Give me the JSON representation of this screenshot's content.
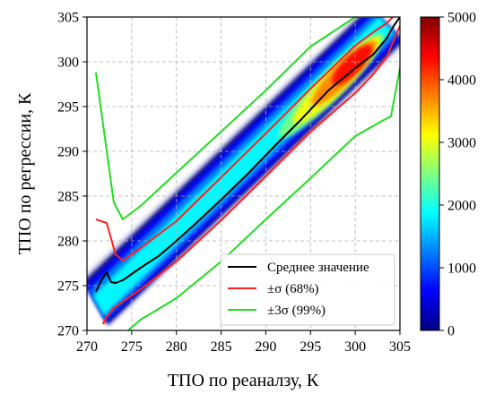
{
  "chart_data": {
    "type": "heatmap",
    "xlabel": "ТПО по реаналзу, К",
    "ylabel": "ТПО по регрессии, К",
    "xlim": [
      270,
      305
    ],
    "ylim": [
      270,
      305
    ],
    "x_ticks": [
      "270",
      "275",
      "280",
      "285",
      "290",
      "295",
      "300",
      "305"
    ],
    "y_ticks": [
      "270",
      "275",
      "280",
      "285",
      "290",
      "295",
      "300",
      "305"
    ],
    "grid": true,
    "legend_position": "lower-right",
    "density": {
      "band_center": [
        [
          271.5,
          272.5
        ],
        [
          280,
          280
        ],
        [
          290,
          290
        ],
        [
          303.5,
          304
        ]
      ],
      "peak_near": [
        301,
        301
      ],
      "colormap": "jet",
      "low_color": "#d6d8ee"
    },
    "colorbar": {
      "min": 0,
      "max": 5000,
      "ticks": [
        "0",
        "1000",
        "2000",
        "3000",
        "4000",
        "5000"
      ],
      "colors": [
        "#00007f",
        "#0000ff",
        "#007fff",
        "#00ffff",
        "#7fff7f",
        "#ffff00",
        "#ff7f00",
        "#ff0000",
        "#7f0000"
      ]
    },
    "series": [
      {
        "name": "Среднее значение",
        "color": "#000000",
        "x": [
          271,
          271.6,
          272.2,
          272.7,
          273.2,
          274,
          276,
          278,
          280,
          282,
          285,
          288,
          291,
          294,
          297,
          300,
          302,
          303.5,
          304.3,
          305
        ],
        "y": [
          274.3,
          275.6,
          276.5,
          275.4,
          275.3,
          275.6,
          277,
          278.3,
          280,
          281.8,
          284.6,
          287.5,
          290.6,
          293.6,
          296.8,
          299.3,
          300.8,
          302.6,
          304,
          305
        ]
      },
      {
        "name": "±σ (68%)",
        "color": "#ff2020",
        "segments": [
          {
            "x": [
              271,
              272.2,
              272.8,
              273.2,
              274,
              276,
              280,
              285,
              290,
              295,
              300,
              302,
              303.5,
              304.2
            ],
            "y": [
              282.4,
              282,
              279.9,
              278.5,
              277.8,
              279.2,
              282.2,
              287.1,
              292,
              297,
              301.8,
              303.3,
              304.3,
              305
            ]
          },
          {
            "x": [
              271.8,
              272.2,
              273,
              274,
              276,
              280,
              285,
              290,
              295,
              300,
              302,
              303.5,
              305
            ],
            "y": [
              270.7,
              271.5,
              272.5,
              273.2,
              274.6,
              277.7,
              282.3,
              287.2,
              292.2,
              296.5,
              298.6,
              300.5,
              304
            ]
          }
        ]
      },
      {
        "name": "±3σ (99%)",
        "color": "#22dd22",
        "segments": [
          {
            "x": [
              271,
              273,
              274,
              276,
              280,
              285,
              290,
              295,
              300,
              302.5
            ],
            "y": [
              298.8,
              284.3,
              282.4,
              283.9,
              287.6,
              292.2,
              296.8,
              301.7,
              305,
              305
            ]
          },
          {
            "x": [
              274.6,
              276,
              280,
              285,
              290,
              295,
              300,
              303,
              304,
              305
            ],
            "y": [
              270,
              271.2,
              273.6,
              277.7,
              282.4,
              287,
              291.7,
              293.4,
              293.9,
              299.3
            ]
          }
        ]
      }
    ]
  }
}
